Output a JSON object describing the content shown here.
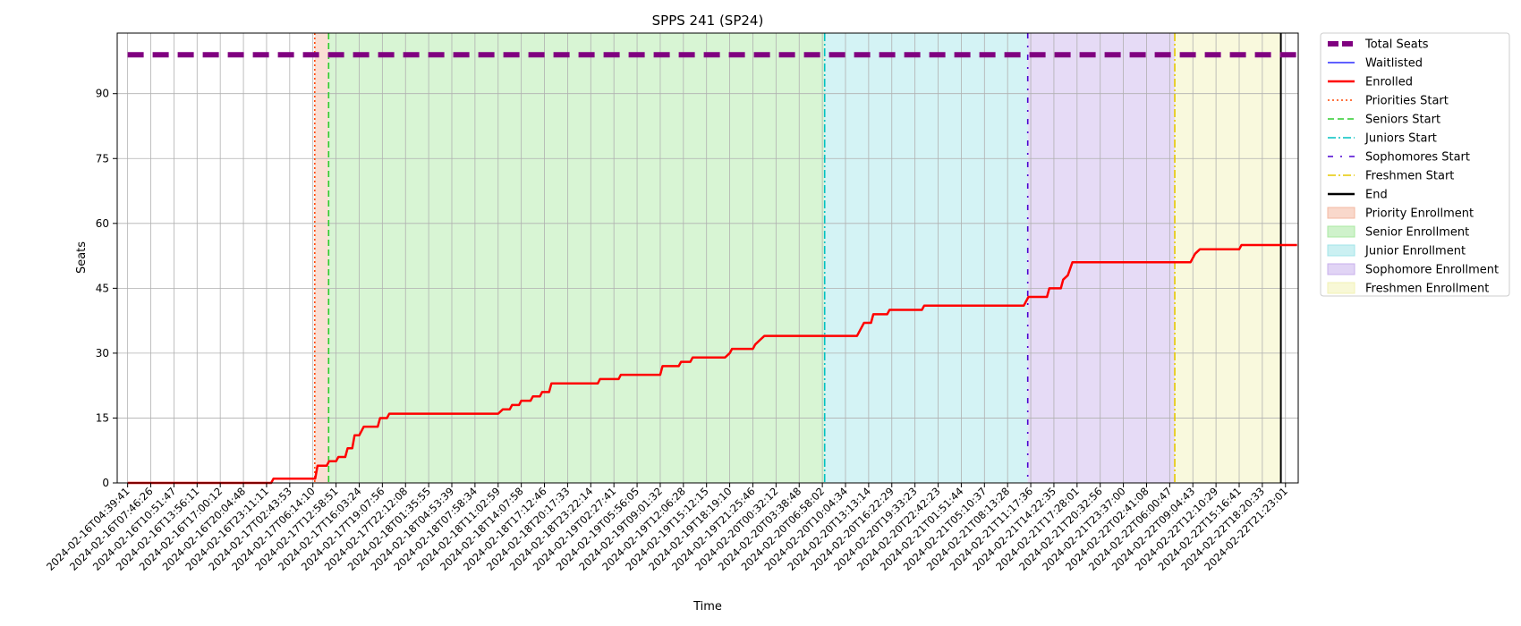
{
  "chart_data": {
    "type": "line",
    "title": "SPPS 241 (SP24)",
    "xlabel": "Time",
    "ylabel": "Seats",
    "ylim": [
      0,
      104
    ],
    "yticks": [
      0,
      15,
      30,
      45,
      60,
      75,
      90
    ],
    "grid": true,
    "legend_position": "outside-right",
    "x_tick_labels": [
      "2024-02-16T04:39:41",
      "2024-02-16T07:46:26",
      "2024-02-16T10:51:47",
      "2024-02-16T13:56:11",
      "2024-02-16T17:00:12",
      "2024-02-16T20:04:48",
      "2024-02-16T23:11:11",
      "2024-02-17T02:43:53",
      "2024-02-17T06:14:10",
      "2024-02-17T12:58:51",
      "2024-02-17T16:03:24",
      "2024-02-17T19:07:56",
      "2024-02-17T22:12:08",
      "2024-02-18T01:35:55",
      "2024-02-18T04:53:39",
      "2024-02-18T07:58:34",
      "2024-02-18T11:02:59",
      "2024-02-18T14:07:58",
      "2024-02-18T17:12:46",
      "2024-02-18T20:17:33",
      "2024-02-18T23:22:14",
      "2024-02-19T02:27:41",
      "2024-02-19T05:56:05",
      "2024-02-19T09:01:32",
      "2024-02-19T12:06:28",
      "2024-02-19T15:12:15",
      "2024-02-19T18:19:10",
      "2024-02-19T21:25:46",
      "2024-02-20T00:32:12",
      "2024-02-20T03:38:48",
      "2024-02-20T06:58:02",
      "2024-02-20T10:04:34",
      "2024-02-20T13:13:14",
      "2024-02-20T16:22:29",
      "2024-02-20T19:33:23",
      "2024-02-20T22:42:23",
      "2024-02-21T01:51:44",
      "2024-02-21T05:10:37",
      "2024-02-21T08:13:28",
      "2024-02-21T11:17:36",
      "2024-02-21T14:22:35",
      "2024-02-21T17:28:01",
      "2024-02-21T20:32:56",
      "2024-02-21T23:37:00",
      "2024-02-22T02:41:08",
      "2024-02-22T06:00:47",
      "2024-02-22T09:04:43",
      "2024-02-22T12:10:29",
      "2024-02-22T15:16:41",
      "2024-02-22T18:20:33",
      "2024-02-22T21:23:01"
    ],
    "series": [
      {
        "name": "Total Seats",
        "color": "#800080",
        "style": "dashed-thick",
        "values": [
          [
            0,
            99
          ],
          [
            50.5,
            99
          ]
        ]
      },
      {
        "name": "Waitlisted",
        "color": "#0000ff",
        "style": "solid-thin",
        "values": []
      },
      {
        "name": "Enrolled",
        "color": "#ff0000",
        "style": "solid",
        "values": [
          [
            0,
            0
          ],
          [
            6.2,
            0
          ],
          [
            6.3,
            1
          ],
          [
            8.1,
            1
          ],
          [
            8.2,
            4
          ],
          [
            8.6,
            4
          ],
          [
            8.7,
            5
          ],
          [
            9.0,
            5
          ],
          [
            9.1,
            6
          ],
          [
            9.4,
            6
          ],
          [
            9.5,
            8
          ],
          [
            9.7,
            8
          ],
          [
            9.8,
            11
          ],
          [
            10.0,
            11
          ],
          [
            10.2,
            13
          ],
          [
            10.8,
            13
          ],
          [
            10.9,
            15
          ],
          [
            11.2,
            15
          ],
          [
            11.3,
            16
          ],
          [
            16.0,
            16
          ],
          [
            16.2,
            17
          ],
          [
            16.5,
            17
          ],
          [
            16.6,
            18
          ],
          [
            16.9,
            18
          ],
          [
            17.0,
            19
          ],
          [
            17.4,
            19
          ],
          [
            17.5,
            20
          ],
          [
            17.8,
            20
          ],
          [
            17.9,
            21
          ],
          [
            18.2,
            21
          ],
          [
            18.3,
            23
          ],
          [
            20.3,
            23
          ],
          [
            20.4,
            24
          ],
          [
            21.2,
            24
          ],
          [
            21.3,
            25
          ],
          [
            23.0,
            25
          ],
          [
            23.1,
            27
          ],
          [
            23.8,
            27
          ],
          [
            23.9,
            28
          ],
          [
            24.3,
            28
          ],
          [
            24.4,
            29
          ],
          [
            25.8,
            29
          ],
          [
            26.0,
            30
          ],
          [
            26.1,
            31
          ],
          [
            27.0,
            31
          ],
          [
            27.1,
            32
          ],
          [
            27.3,
            33
          ],
          [
            27.5,
            34
          ],
          [
            31.5,
            34
          ],
          [
            31.6,
            35
          ],
          [
            31.8,
            37
          ],
          [
            32.1,
            37
          ],
          [
            32.2,
            39
          ],
          [
            32.8,
            39
          ],
          [
            32.9,
            40
          ],
          [
            34.3,
            40
          ],
          [
            34.4,
            41
          ],
          [
            38.7,
            41
          ],
          [
            38.9,
            43
          ],
          [
            39.7,
            43
          ],
          [
            39.8,
            45
          ],
          [
            40.3,
            45
          ],
          [
            40.4,
            47
          ],
          [
            40.6,
            48
          ],
          [
            40.8,
            51
          ],
          [
            45.9,
            51
          ],
          [
            46.1,
            53
          ],
          [
            46.3,
            54
          ],
          [
            48.0,
            54
          ],
          [
            48.1,
            55
          ],
          [
            50.5,
            55
          ]
        ]
      }
    ],
    "vertical_lines": [
      {
        "name": "Priorities Start",
        "x": 8.08,
        "color": "#ff4500",
        "style": "dotted"
      },
      {
        "name": "Seniors Start",
        "x": 8.68,
        "color": "#2ecc2e",
        "style": "dashed"
      },
      {
        "name": "Juniors Start",
        "x": 30.1,
        "color": "#00c0c0",
        "style": "dashdot"
      },
      {
        "name": "Sophomores Start",
        "x": 38.87,
        "color": "#4b00d0",
        "style": "loosely-dashdot"
      },
      {
        "name": "Freshmen Start",
        "x": 45.22,
        "color": "#e6c800",
        "style": "dashdot"
      },
      {
        "name": "End",
        "x": 49.8,
        "color": "#000000",
        "style": "solid"
      }
    ],
    "shaded_regions": [
      {
        "name": "Priority Enrollment",
        "x0": 8.08,
        "x1": 8.68,
        "color": "#f4b8a0"
      },
      {
        "name": "Senior Enrollment",
        "x0": 8.68,
        "x1": 30.1,
        "color": "#a8e8a0"
      },
      {
        "name": "Junior Enrollment",
        "x0": 30.1,
        "x1": 38.87,
        "color": "#a0e4e8"
      },
      {
        "name": "Sophomore Enrollment",
        "x0": 38.87,
        "x1": 45.22,
        "color": "#c8b0ec"
      },
      {
        "name": "Freshmen Enrollment",
        "x0": 45.22,
        "x1": 49.8,
        "color": "#f2f2b4"
      }
    ]
  },
  "legend": [
    {
      "label": "Total Seats",
      "kind": "line",
      "color": "#800080",
      "style": "dashed-thick"
    },
    {
      "label": "Waitlisted",
      "kind": "line",
      "color": "#0000ff",
      "style": "solid-thin"
    },
    {
      "label": "Enrolled",
      "kind": "line",
      "color": "#ff0000",
      "style": "solid"
    },
    {
      "label": "Priorities Start",
      "kind": "line",
      "color": "#ff4500",
      "style": "dotted"
    },
    {
      "label": "Seniors Start",
      "kind": "line",
      "color": "#2ecc2e",
      "style": "dashed"
    },
    {
      "label": "Juniors Start",
      "kind": "line",
      "color": "#00c0c0",
      "style": "dashdot"
    },
    {
      "label": "Sophomores Start",
      "kind": "line",
      "color": "#4b00d0",
      "style": "loosely-dashdot"
    },
    {
      "label": "Freshmen Start",
      "kind": "line",
      "color": "#e6c800",
      "style": "dashdot"
    },
    {
      "label": "End",
      "kind": "line",
      "color": "#000000",
      "style": "solid"
    },
    {
      "label": "Priority Enrollment",
      "kind": "patch",
      "color": "#f4b8a0"
    },
    {
      "label": "Senior Enrollment",
      "kind": "patch",
      "color": "#a8e8a0"
    },
    {
      "label": "Junior Enrollment",
      "kind": "patch",
      "color": "#a0e4e8"
    },
    {
      "label": "Sophomore Enrollment",
      "kind": "patch",
      "color": "#c8b0ec"
    },
    {
      "label": "Freshmen Enrollment",
      "kind": "patch",
      "color": "#f2f2b4"
    }
  ]
}
